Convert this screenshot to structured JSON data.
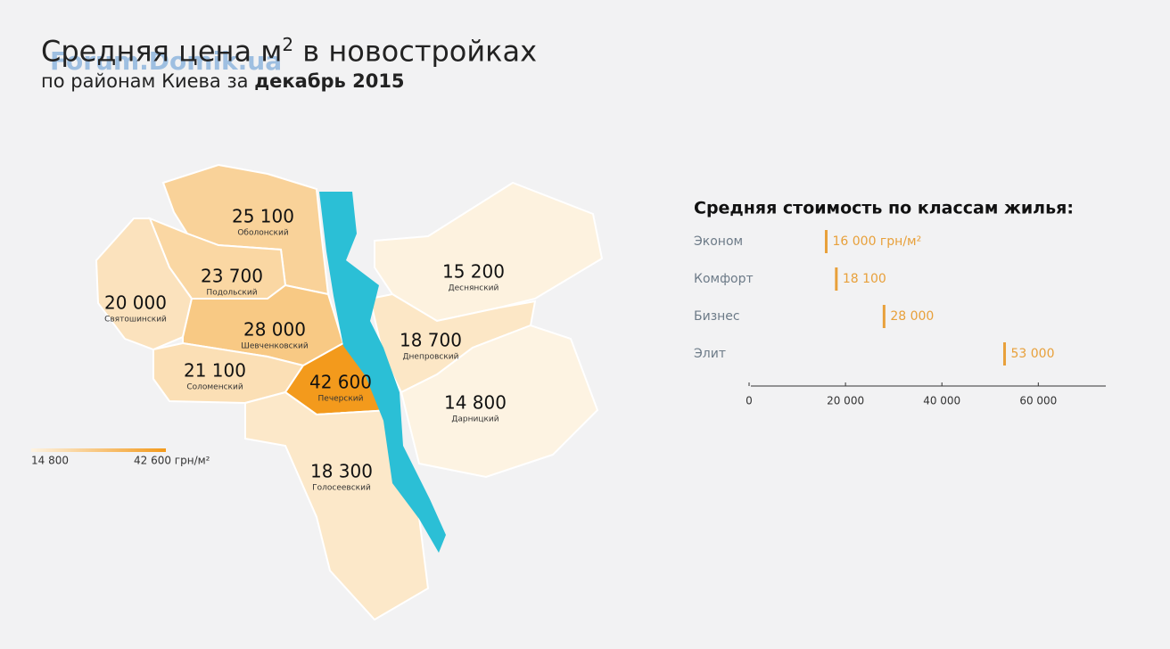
{
  "header": {
    "watermark": "Forum.Domik.ua",
    "title": "Средняя цена м",
    "title_sup": "2",
    "title_rest": " в новостройках",
    "subtitle": "по районам Киева за ",
    "subtitle_bold": "декабрь 2015"
  },
  "map": {
    "districts": [
      {
        "name": "Оболонский",
        "value": 25100,
        "value_label": "25 100"
      },
      {
        "name": "Подольский",
        "value": 23700,
        "value_label": "23 700"
      },
      {
        "name": "Святошинский",
        "value": 20000,
        "value_label": "20 000"
      },
      {
        "name": "Шевченковский",
        "value": 28000,
        "value_label": "28 000"
      },
      {
        "name": "Соломенский",
        "value": 21100,
        "value_label": "21 100"
      },
      {
        "name": "Печерский",
        "value": 42600,
        "value_label": "42 600"
      },
      {
        "name": "Голосеевский",
        "value": 18300,
        "value_label": "18 300"
      },
      {
        "name": "Деснянский",
        "value": 15200,
        "value_label": "15 200"
      },
      {
        "name": "Днепровский",
        "value": 18700,
        "value_label": "18 700"
      },
      {
        "name": "Дарницкий",
        "value": 14800,
        "value_label": "14 800"
      }
    ],
    "legend": {
      "min": {
        "value": 14800,
        "label": "14 800"
      },
      "max": {
        "value": 42600,
        "label": "42 600 грн/м²"
      },
      "colors": [
        "#fdf3e2",
        "#f39a1c"
      ]
    },
    "river_color": "#2bbfd6"
  },
  "chart_data": {
    "type": "bar",
    "orientation": "horizontal",
    "title": "Средняя стоимость по классам жилья:",
    "categories": [
      "Эконом",
      "Комфорт",
      "Бизнес",
      "Элит"
    ],
    "values": [
      16000,
      18100,
      28000,
      53000
    ],
    "value_labels": [
      "16 000 грн/м²",
      "18 100",
      "28 000",
      "53 000"
    ],
    "color": "#e8a03a",
    "xlim": [
      0,
      74000
    ],
    "xticks": [
      0,
      {
        "value": 20000,
        "label": "20 000"
      },
      {
        "value": 40000,
        "label": "40 000"
      },
      {
        "value": 60000,
        "label": "60 000"
      }
    ]
  }
}
